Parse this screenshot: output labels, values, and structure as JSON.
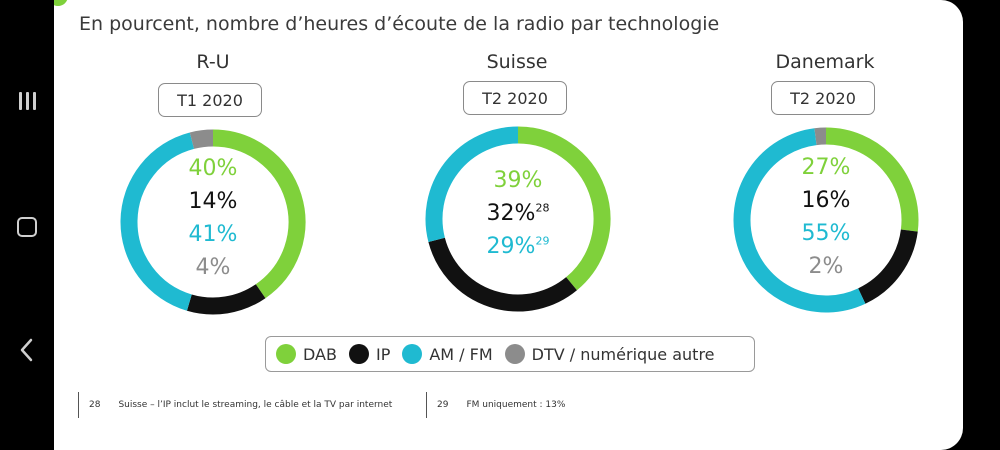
{
  "title": "En pourcent, nombre d’heures d’écoute de la radio par technologie",
  "colors": {
    "DAB": "#7fd13b",
    "IP": "#111111",
    "AM / FM": "#1fbad1",
    "DTV / numérique autre": "#8c8c8c"
  },
  "legend": [
    {
      "label": "DAB",
      "color": "#7fd13b"
    },
    {
      "label": "IP",
      "color": "#111111"
    },
    {
      "label": "AM / FM",
      "color": "#1fbad1"
    },
    {
      "label": "DTV / numérique autre",
      "color": "#8c8c8c"
    }
  ],
  "chart_data": [
    {
      "type": "pie",
      "title": "R-U",
      "period": "T1 2020",
      "categories": [
        "DAB",
        "IP",
        "AM / FM",
        "DTV / numérique autre"
      ],
      "values": [
        40,
        14,
        41,
        4
      ],
      "labels": [
        "40%",
        "14%",
        "41%",
        "4%"
      ],
      "footnote_refs": [
        "",
        "",
        "",
        ""
      ]
    },
    {
      "type": "pie",
      "title": "Suisse",
      "period": "T2 2020",
      "categories": [
        "DAB",
        "IP",
        "AM / FM"
      ],
      "values": [
        39,
        32,
        29
      ],
      "labels": [
        "39%",
        "32%",
        "29%"
      ],
      "footnote_refs": [
        "",
        "28",
        "29"
      ]
    },
    {
      "type": "pie",
      "title": "Danemark",
      "period": "T2 2020",
      "categories": [
        "DAB",
        "IP",
        "AM / FM",
        "DTV / numérique autre"
      ],
      "values": [
        27,
        16,
        55,
        2
      ],
      "labels": [
        "27%",
        "16%",
        "55%",
        "2%"
      ],
      "footnote_refs": [
        "",
        "",
        "",
        ""
      ]
    }
  ],
  "footnotes": [
    {
      "num": "28",
      "text": "Suisse – l’IP inclut le streaming, le câble et la TV par internet"
    },
    {
      "num": "29",
      "text": "FM uniquement : 13%"
    }
  ]
}
